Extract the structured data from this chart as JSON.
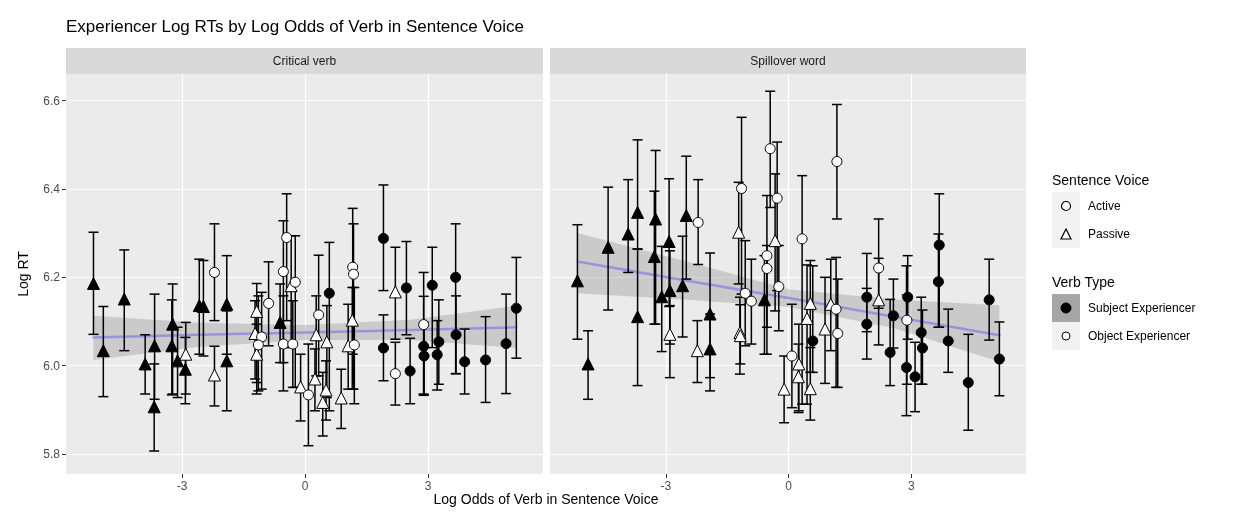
{
  "chart_data": [
    {
      "type": "scatter",
      "title": "Experiencer Log RTs by Log Odds of Verb in Sentence Voice",
      "subtitle": "Critical verb",
      "xlabel": "Log Odds of Verb in Sentence Voice",
      "ylabel": "Log RT",
      "xlim": [
        -5.83,
        5.8
      ],
      "xticks": [
        -3,
        0,
        3
      ],
      "ylim": [
        5.755,
        6.66
      ],
      "yticks": [
        5.8,
        {
          "value": 6,
          "label": "6.0"
        },
        6.2,
        6.4,
        6.6
      ],
      "grid": true,
      "series": [
        {
          "color": "#000000",
          "marker": "triangle",
          "x": [
            -5.16,
            -4.92,
            -4.41,
            -3.9,
            -3.67,
            -3.68,
            -3.23,
            -3.25,
            -3.11,
            -2.92,
            -2.58,
            -2.48,
            -1.91,
            -1.91,
            -0.61
          ],
          "values": [
            6.186,
            6.034,
            6.151,
            6.004,
            6.045,
            5.907,
            6.094,
            6.045,
            6.011,
            5.992,
            6.136,
            6.134,
            6.139,
            6.011,
            6.098
          ],
          "errors": [
            [
              6.071,
              6.302
            ],
            [
              5.93,
              6.134
            ],
            [
              6.034,
              6.262
            ],
            [
              5.936,
              6.07
            ],
            [
              5.924,
              6.162
            ],
            [
              5.807,
              6.004
            ],
            [
              5.936,
              6.185
            ],
            [
              5.934,
              6.149
            ],
            [
              5.928,
              6.087
            ],
            [
              5.914,
              6.064
            ],
            [
              6.026,
              6.241
            ],
            [
              6.022,
              6.238
            ],
            [
              6.026,
              6.249
            ],
            [
              5.898,
              6.124
            ],
            [
              6.007,
              6.185
            ]
          ]
        },
        {
          "color": "#ffffff",
          "marker": "triangle",
          "x": [
            -2.91,
            -2.21,
            -1.18,
            -1.22,
            -1.18,
            -0.34,
            -0.11,
            0.24,
            0.27,
            0.51,
            0.43,
            0.53,
            0.88,
            1.15,
            1.05,
            2.2
          ],
          "values": [
            6.026,
            5.979,
            6.123,
            6.073,
            6.026,
            6.181,
            5.952,
            5.97,
            6.07,
            5.945,
            5.917,
            6.054,
            5.927,
            6.103,
            6.045,
            6.167
          ],
          "errors": [
            [
              5.936,
              6.098
            ],
            [
              5.909,
              6.044
            ],
            [
              5.962,
              6.186
            ],
            [
              5.97,
              6.147
            ],
            [
              5.936,
              6.094
            ],
            [
              6.041,
              6.294
            ],
            [
              5.875,
              6.026
            ],
            [
              5.898,
              6.038
            ],
            [
              5.977,
              6.158
            ],
            [
              5.877,
              6.011
            ],
            [
              5.841,
              5.985
            ],
            [
              5.928,
              6.136
            ],
            [
              5.858,
              5.992
            ],
            [
              5.947,
              6.177
            ],
            [
              5.947,
              6.139
            ],
            [
              6.06,
              6.268
            ]
          ]
        },
        {
          "color": "#ffffff",
          "marker": "circle",
          "x": [
            -2.21,
            -1.06,
            -1.14,
            -0.89,
            -0.53,
            -0.45,
            -0.53,
            -0.24,
            -0.3,
            0.08,
            0.33,
            1.16,
            1.18,
            1.2,
            2.2,
            2.89
          ],
          "values": [
            6.211,
            6.065,
            6.047,
            6.141,
            6.213,
            6.29,
            6.049,
            6.189,
            6.049,
            5.934,
            6.115,
            6.223,
            6.207,
            6.047,
            5.982,
            6.093
          ],
          "errors": [
            [
              6.102,
              6.321
            ],
            [
              5.947,
              6.166
            ],
            [
              5.943,
              6.158
            ],
            [
              6.045,
              6.235
            ],
            [
              6.007,
              6.328
            ],
            [
              6.102,
              6.389
            ],
            [
              5.943,
              6.158
            ],
            [
              5.951,
              6.294
            ],
            [
              5.951,
              6.147
            ],
            [
              5.819,
              6.049
            ],
            [
              5.977,
              6.25
            ],
            [
              6.026,
              6.356
            ],
            [
              5.947,
              6.321
            ],
            [
              5.914,
              6.177
            ],
            [
              5.911,
              6.053
            ],
            [
              5.933,
              6.211
            ]
          ]
        },
        {
          "color": "#000000",
          "marker": "circle",
          "x": [
            0.59,
            1.91,
            1.91,
            2.47,
            2.56,
            2.89,
            2.9,
            3.1,
            3.22,
            3.26,
            3.67,
            3.68,
            3.89,
            4.4,
            4.9,
            5.15
          ],
          "values": [
            6.164,
            6.288,
            6.04,
            6.176,
            5.988,
            6.044,
            6.022,
            6.182,
            6.025,
            6.054,
            6.2,
            6.07,
            6.009,
            6.013,
            6.05,
            6.13
          ],
          "errors": [
            [
              5.898,
              6.279
            ],
            [
              6.17,
              6.409
            ],
            [
              5.966,
              6.115
            ],
            [
              6.07,
              6.281
            ],
            [
              5.914,
              6.062
            ],
            [
              5.936,
              6.157
            ],
            [
              5.934,
              6.098
            ],
            [
              6.041,
              6.268
            ],
            [
              5.945,
              6.102
            ],
            [
              5.958,
              6.149
            ],
            [
              5.982,
              6.321
            ],
            [
              5.982,
              6.158
            ],
            [
              5.936,
              6.083
            ],
            [
              5.917,
              6.111
            ],
            [
              5.937,
              6.162
            ],
            [
              6.017,
              6.245
            ]
          ]
        },
        {
          "type": "line",
          "color": "#8c8ce0",
          "x": [
            -5.16,
            -2.58,
            0,
            2.58,
            5.15
          ],
          "values": [
            6.064,
            6.07,
            6.075,
            6.081,
            6.087
          ],
          "lower": [
            6.013,
            6.043,
            6.058,
            6.058,
            6.04
          ],
          "upper": [
            6.113,
            6.097,
            6.092,
            6.104,
            6.136
          ]
        }
      ]
    },
    {
      "type": "scatter",
      "subtitle": "Spillover word",
      "xlim": [
        -5.83,
        5.8
      ],
      "xticks": [
        -3,
        0,
        3
      ],
      "ylim": [
        5.755,
        6.66
      ],
      "yticks": [
        5.8,
        6,
        6.2,
        6.4,
        6.6
      ],
      "grid": true,
      "tick_labels": "x",
      "series": [
        {
          "color": "#000000",
          "marker": "triangle",
          "x": [
            -5.16,
            -4.9,
            -4.41,
            -3.92,
            -3.69,
            -3.69,
            -3.25,
            -3.28,
            -3.1,
            -2.92,
            -2.9,
            -2.5,
            -2.59,
            -1.92,
            -1.92,
            -0.59
          ],
          "values": [
            6.192,
            6.004,
            6.268,
            6.298,
            6.347,
            6.111,
            6.332,
            6.247,
            6.156,
            6.281,
            6.17,
            6.34,
            6.181,
            6.117,
            6.038,
            6.149
          ],
          "errors": [
            [
              6.06,
              6.319
            ],
            [
              5.924,
              6.079
            ],
            [
              6.126,
              6.404
            ],
            [
              6.211,
              6.421
            ],
            [
              6.264,
              6.511
            ],
            [
              5.955,
              6.264
            ],
            [
              6.094,
              6.487
            ],
            [
              6.094,
              6.395
            ],
            [
              6.032,
              6.27
            ],
            [
              6.134,
              6.423
            ],
            [
              6.049,
              6.26
            ],
            [
              6.196,
              6.474
            ],
            [
              6.065,
              6.293
            ],
            [
              5.973,
              6.255
            ],
            [
              5.943,
              6.117
            ],
            [
              6.026,
              6.249
            ]
          ]
        },
        {
          "color": "#ffffff",
          "marker": "triangle",
          "x": [
            -2.9,
            -2.23,
            -1.22,
            -1.19,
            -1.18,
            -0.33,
            -0.11,
            0.24,
            0.25,
            0.45,
            0.53,
            0.53,
            0.89,
            1.03,
            2.2
          ],
          "values": [
            6.071,
            6.034,
            6.302,
            6.075,
            6.068,
            6.283,
            5.947,
            5.975,
            6.004,
            6.107,
            6.141,
            5.948,
            6.083,
            6.139,
            6.149
          ],
          "errors": [
            [
              5.973,
              6.136
            ],
            [
              5.962,
              6.102
            ],
            [
              6.185,
              6.415
            ],
            [
              5.981,
              6.155
            ],
            [
              6.004,
              6.138
            ],
            [
              6.124,
              6.434
            ],
            [
              5.871,
              6.022
            ],
            [
              5.894,
              6.049
            ],
            [
              5.898,
              6.094
            ],
            [
              5.913,
              6.228
            ],
            [
              5.985,
              6.238
            ],
            [
              5.877,
              6.041
            ],
            [
              5.96,
              6.2
            ],
            [
              6.034,
              6.241
            ],
            [
              6.047,
              6.243
            ]
          ]
        },
        {
          "color": "#ffffff",
          "marker": "circle",
          "x": [
            -2.21,
            -1.15,
            -1.06,
            -0.91,
            -0.53,
            -0.53,
            -0.45,
            -0.28,
            -0.24,
            0.08,
            0.33,
            1.16,
            1.2,
            1.18,
            2.2,
            2.89
          ],
          "values": [
            6.324,
            6.401,
            6.164,
            6.146,
            6.249,
            6.22,
            6.491,
            6.379,
            6.179,
            6.022,
            6.287,
            6.128,
            6.073,
            6.462,
            6.221,
            6.103
          ],
          "errors": [
            [
              6.229,
              6.421
            ],
            [
              6.162,
              6.562
            ],
            [
              6.045,
              6.283
            ],
            [
              6.049,
              6.241
            ],
            [
              6.026,
              6.385
            ],
            [
              6.087,
              6.272
            ],
            [
              6.358,
              6.621
            ],
            [
              6.17,
              6.506
            ],
            [
              6.079,
              6.272
            ],
            [
              5.905,
              6.139
            ],
            [
              5.913,
              6.43
            ],
            [
              5.951,
              6.245
            ],
            [
              5.951,
              6.196
            ],
            [
              6.332,
              6.591
            ],
            [
              6.13,
              6.332
            ],
            [
              5.958,
              6.16
            ]
          ]
        },
        {
          "color": "#000000",
          "marker": "circle",
          "x": [
            0.59,
            1.91,
            1.91,
            2.48,
            2.56,
            2.91,
            2.88,
            3.09,
            3.24,
            3.27,
            3.68,
            3.66,
            3.9,
            4.39,
            4.9,
            5.15
          ],
          "values": [
            6.056,
            6.155,
            6.094,
            6.03,
            6.113,
            6.155,
            5.996,
            5.975,
            6.075,
            6.04,
            6.273,
            6.19,
            6.056,
            5.962,
            6.149,
            6.015
          ],
          "errors": [
            [
              5.985,
              6.226
            ],
            [
              6.077,
              6.254
            ],
            [
              6.015,
              6.175
            ],
            [
              5.955,
              6.15
            ],
            [
              6.04,
              6.196
            ],
            [
              6.06,
              6.249
            ],
            [
              5.887,
              6.226
            ],
            [
              5.896,
              6.053
            ],
            [
              5.958,
              6.155
            ],
            [
              5.958,
              6.126
            ],
            [
              6.087,
              6.389
            ],
            [
              6.087,
              6.298
            ],
            [
              5.985,
              6.128
            ],
            [
              5.854,
              6.071
            ],
            [
              6.058,
              6.241
            ],
            [
              5.932,
              6.099
            ]
          ]
        },
        {
          "type": "line",
          "color": "#8c8ce0",
          "x": [
            -5.16,
            -2.58,
            0,
            2.58,
            5.15
          ],
          "values": [
            6.236,
            6.194,
            6.153,
            6.111,
            6.069
          ],
          "lower": [
            6.164,
            6.15,
            6.133,
            6.085,
            6.009
          ],
          "upper": [
            6.3,
            6.238,
            6.173,
            6.15,
            6.137
          ]
        }
      ]
    },
    {
      "type": "other",
      "annotations": [
        "Sentence Voice",
        "Active",
        "Passive",
        "Verb Type",
        "Subject Experiencer",
        "Object Experiencer"
      ]
    }
  ]
}
